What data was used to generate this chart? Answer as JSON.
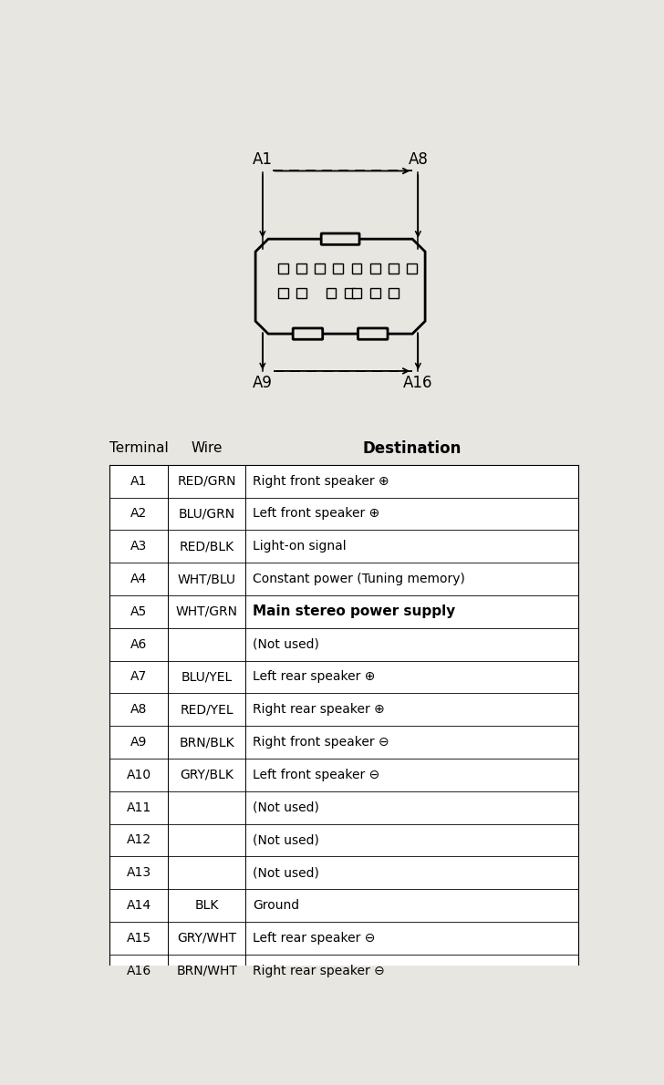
{
  "bg_color": "#e8e6e1",
  "table_bg": "#ffffff",
  "text_color": "#000000",
  "table_rows": [
    [
      "A1",
      "RED/GRN",
      "Right front speaker ⊕"
    ],
    [
      "A2",
      "BLU/GRN",
      "Left front speaker ⊕"
    ],
    [
      "A3",
      "RED/BLK",
      "Light-on signal"
    ],
    [
      "A4",
      "WHT/BLU",
      "Constant power (Tuning memory)"
    ],
    [
      "A5",
      "WHT/GRN",
      "Main stereo power supply"
    ],
    [
      "A6",
      "",
      "(Not used)"
    ],
    [
      "A7",
      "BLU/YEL",
      "Left rear speaker ⊕"
    ],
    [
      "A8",
      "RED/YEL",
      "Right rear speaker ⊕"
    ],
    [
      "A9",
      "BRN/BLK",
      "Right front speaker ⊖"
    ],
    [
      "A10",
      "GRY/BLK",
      "Left front speaker ⊖"
    ],
    [
      "A11",
      "",
      "(Not used)"
    ],
    [
      "A12",
      "",
      "(Not used)"
    ],
    [
      "A13",
      "",
      "(Not used)"
    ],
    [
      "A14",
      "BLK",
      "Ground"
    ],
    [
      "A15",
      "GRY/WHT",
      "Left rear speaker ⊖"
    ],
    [
      "A16",
      "BRN/WHT",
      "Right rear speaker ⊖"
    ]
  ],
  "bold_row_idx": 4,
  "col_headers": [
    "Terminal",
    "Wire",
    "Destination"
  ],
  "header_weights": [
    "normal",
    "normal",
    "bold"
  ],
  "header_fontsize": [
    11,
    11,
    12
  ],
  "cell_fontsize": 10,
  "bold_fontsize": 11,
  "diagram_label_A1": "A1",
  "diagram_label_A8": "A8",
  "diagram_label_A9": "A9",
  "diagram_label_A16": "A16"
}
